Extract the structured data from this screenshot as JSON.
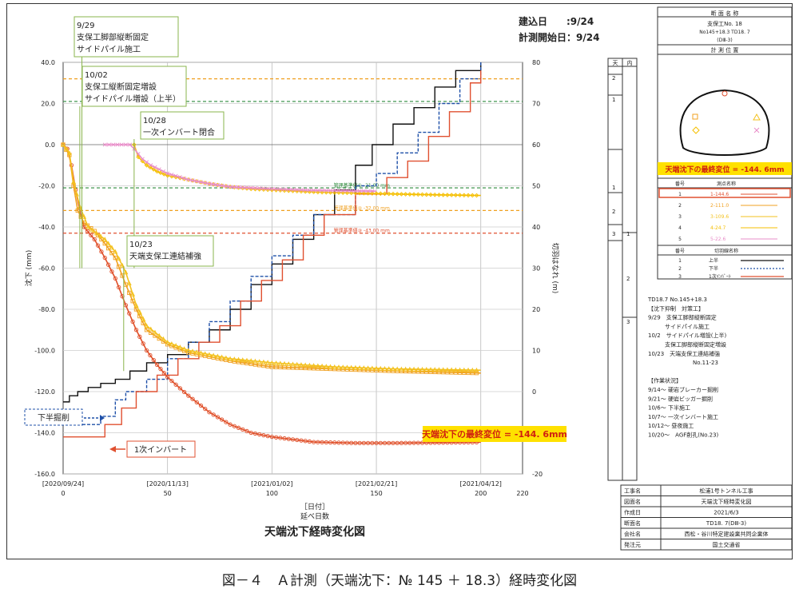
{
  "chart_data": {
    "type": "line",
    "title": "天端沈下経時変化図",
    "xlabel_top": "［日付］",
    "xlabel": "延べ日数",
    "ylabel": "沈下 (mm)",
    "y2label": "切羽はなれ (m)",
    "xlim": [
      0,
      220
    ],
    "ylim": [
      -160,
      40
    ],
    "y2lim": [
      -20,
      80
    ],
    "x_ticks": [
      0,
      50,
      100,
      150,
      200,
      220
    ],
    "y_ticks": [
      40,
      20,
      0,
      -20,
      -40,
      -60,
      -80,
      -100,
      -120,
      -140,
      -160
    ],
    "y_tick_labels": [
      "40.0",
      "20.0",
      "0.0",
      "-20.0",
      "-40.0",
      "-60.0",
      "-80.0",
      "-100.0",
      "-120.0",
      "-140.0",
      "-160.0"
    ],
    "y2_ticks": [
      80,
      70,
      60,
      50,
      40,
      30,
      20,
      10,
      0,
      -10,
      -20
    ],
    "date_ticks": [
      {
        "x": 0,
        "label": "[2020/09/24]"
      },
      {
        "x": 50,
        "label": "[2020/11/13]"
      },
      {
        "x": 100,
        "label": "[2021/01/02]"
      },
      {
        "x": 150,
        "label": "[2021/02/21]"
      },
      {
        "x": 200,
        "label": "[2021/04/12]"
      }
    ],
    "grid": true,
    "ref_lines": [
      {
        "y": 32,
        "color": "#f0a020",
        "dash": true
      },
      {
        "y": 21,
        "color": "#2e8b3c",
        "dash": true
      },
      {
        "y": -21,
        "color": "#2e8b3c",
        "dash": true,
        "label": "管理基準値① -21.00 mm"
      },
      {
        "y": -32,
        "color": "#f0a020",
        "dash": true,
        "label": "管理基準値② -32.00 mm"
      },
      {
        "y": -43,
        "color": "#e05030",
        "dash": true,
        "label": "管理基準値③ -43.00 mm"
      }
    ],
    "measure_series": [
      {
        "color": "#e0502a",
        "marker": "circle",
        "points": [
          [
            0,
            0
          ],
          [
            2,
            -2
          ],
          [
            4,
            -10
          ],
          [
            6,
            -22
          ],
          [
            8,
            -32
          ],
          [
            10,
            -40
          ],
          [
            15,
            -46
          ],
          [
            20,
            -55
          ],
          [
            25,
            -65
          ],
          [
            30,
            -78
          ],
          [
            35,
            -90
          ],
          [
            40,
            -100
          ],
          [
            45,
            -107
          ],
          [
            50,
            -113
          ],
          [
            60,
            -122
          ],
          [
            70,
            -130
          ],
          [
            80,
            -136
          ],
          [
            90,
            -140
          ],
          [
            100,
            -142
          ],
          [
            120,
            -144.5
          ],
          [
            140,
            -145
          ],
          [
            160,
            -145
          ],
          [
            180,
            -144.8
          ],
          [
            200,
            -144.6
          ]
        ]
      },
      {
        "color": "#f0a020",
        "marker": "square",
        "points": [
          [
            0,
            0
          ],
          [
            3,
            -5
          ],
          [
            5,
            -20
          ],
          [
            7,
            -32
          ],
          [
            10,
            -38
          ],
          [
            15,
            -42
          ],
          [
            20,
            -48
          ],
          [
            25,
            -55
          ],
          [
            30,
            -68
          ],
          [
            35,
            -80
          ],
          [
            40,
            -90
          ],
          [
            50,
            -97
          ],
          [
            60,
            -101
          ],
          [
            80,
            -105
          ],
          [
            100,
            -108
          ],
          [
            130,
            -109
          ],
          [
            160,
            -110
          ],
          [
            180,
            -110.5
          ],
          [
            200,
            -111
          ]
        ]
      },
      {
        "color": "#f3c21f",
        "marker": "triangle",
        "points": [
          [
            0,
            0
          ],
          [
            3,
            -4
          ],
          [
            5,
            -18
          ],
          [
            8,
            -30
          ],
          [
            12,
            -40
          ],
          [
            20,
            -46
          ],
          [
            25,
            -52
          ],
          [
            30,
            -62
          ],
          [
            35,
            -78
          ],
          [
            40,
            -88
          ],
          [
            50,
            -96
          ],
          [
            60,
            -100
          ],
          [
            80,
            -104
          ],
          [
            100,
            -106
          ],
          [
            130,
            -108
          ],
          [
            160,
            -109
          ],
          [
            200,
            -109.6
          ]
        ]
      },
      {
        "color": "#f5bf00",
        "marker": "diamond",
        "points": [
          [
            34,
            0
          ],
          [
            36,
            -6
          ],
          [
            40,
            -10
          ],
          [
            45,
            -13
          ],
          [
            50,
            -15
          ],
          [
            60,
            -17
          ],
          [
            70,
            -19
          ],
          [
            80,
            -20.5
          ],
          [
            90,
            -21.5
          ],
          [
            100,
            -22
          ],
          [
            120,
            -23
          ],
          [
            140,
            -23.5
          ],
          [
            160,
            -24
          ],
          [
            180,
            -24.4
          ],
          [
            200,
            -24.7
          ]
        ]
      },
      {
        "color": "#e88cc8",
        "marker": "x",
        "points": [
          [
            20,
            0
          ],
          [
            32,
            0
          ],
          [
            34,
            -2
          ],
          [
            38,
            -7
          ],
          [
            42,
            -10
          ],
          [
            50,
            -14
          ],
          [
            60,
            -17
          ],
          [
            70,
            -19
          ],
          [
            80,
            -20.5
          ],
          [
            100,
            -21.5
          ],
          [
            120,
            -22.2
          ],
          [
            140,
            -22.5
          ],
          [
            150,
            -22.6
          ]
        ]
      }
    ],
    "distance_series": [
      {
        "name": "上半",
        "color": "#111",
        "dash": "",
        "points": [
          [
            0,
            -2.5
          ],
          [
            3,
            -1
          ],
          [
            7,
            0
          ],
          [
            12,
            1
          ],
          [
            18,
            2
          ],
          [
            25,
            3
          ],
          [
            32,
            5
          ],
          [
            40,
            7
          ],
          [
            50,
            9
          ],
          [
            60,
            12
          ],
          [
            70,
            15
          ],
          [
            80,
            20
          ],
          [
            90,
            26
          ],
          [
            100,
            31
          ],
          [
            110,
            37
          ],
          [
            120,
            43
          ],
          [
            130,
            49
          ],
          [
            140,
            55
          ],
          [
            148,
            60
          ],
          [
            158,
            65
          ],
          [
            168,
            69
          ],
          [
            178,
            74
          ],
          [
            188,
            78
          ],
          [
            200,
            80
          ]
        ]
      },
      {
        "name": "下半",
        "color": "#1f50a8",
        "dash": "4,2",
        "points": [
          [
            0,
            -8
          ],
          [
            14,
            -8
          ],
          [
            18,
            -6
          ],
          [
            25,
            -2
          ],
          [
            30,
            0
          ],
          [
            40,
            3
          ],
          [
            50,
            8
          ],
          [
            60,
            12
          ],
          [
            70,
            17
          ],
          [
            80,
            22
          ],
          [
            90,
            28
          ],
          [
            100,
            33
          ],
          [
            110,
            38
          ],
          [
            120,
            43
          ],
          [
            140,
            50
          ],
          [
            150,
            53
          ],
          [
            160,
            58
          ],
          [
            170,
            63
          ],
          [
            180,
            70
          ],
          [
            190,
            76
          ],
          [
            200,
            80
          ]
        ]
      },
      {
        "name": "1次インバート",
        "color": "#e05030",
        "dash": "",
        "points": [
          [
            0,
            -11
          ],
          [
            14,
            -11
          ],
          [
            20,
            -8
          ],
          [
            28,
            -4
          ],
          [
            35,
            0
          ],
          [
            45,
            4
          ],
          [
            55,
            8
          ],
          [
            65,
            12
          ],
          [
            75,
            16
          ],
          [
            85,
            22
          ],
          [
            95,
            27
          ],
          [
            105,
            32
          ],
          [
            115,
            38
          ],
          [
            125,
            43
          ],
          [
            140,
            48
          ],
          [
            155,
            52
          ],
          [
            165,
            56
          ],
          [
            175,
            62
          ],
          [
            185,
            68
          ],
          [
            195,
            75
          ],
          [
            200,
            78
          ]
        ]
      }
    ],
    "annotations": [
      {
        "lines": [
          "9/29",
          "支保工脚部縦断固定",
          "サイドパイル施工"
        ],
        "anchor_x": 9
      },
      {
        "lines": [
          "10/02",
          "支保工縦断固定増設",
          "サイドパイル増設（上半）"
        ],
        "anchor_x": 8
      },
      {
        "lines": [
          "10/28",
          "一次インバート閉合"
        ],
        "anchor_x": 34
      },
      {
        "lines": [
          "10/23",
          "天端支保工連結補強"
        ],
        "anchor_x": 29
      }
    ],
    "dates": {
      "built": "建込日　　:9/24",
      "start": "計測開始日：9/24"
    },
    "final_disp": "天端沈下の最終変位 = -144. 6mm",
    "callouts": {
      "lower": "下半掘削",
      "invert": "1次インバート"
    }
  },
  "side_panel": {
    "col_headers": [
      "天",
      "内"
    ],
    "section": {
      "header": "断 面 名 称",
      "name": "支保工No. 18",
      "station": "No145+18.3 TD18. 7",
      "pattern": "(DⅢ-3)"
    },
    "position_header": "計 測 位 置",
    "final_disp": "天端沈下の最終変位 = -144. 6mm",
    "points_header": [
      "番号",
      "測点名称"
    ],
    "points": [
      {
        "no": "1",
        "label": "1-144.6"
      },
      {
        "no": "2",
        "label": "2-111.0"
      },
      {
        "no": "3",
        "label": "3-109.6"
      },
      {
        "no": "4",
        "label": "4-24.7"
      },
      {
        "no": "5",
        "label": "5-22.6"
      }
    ],
    "line_header": [
      "番号",
      "切羽線名称"
    ],
    "lines": [
      {
        "no": "1",
        "label": "上半"
      },
      {
        "no": "2",
        "label": "下半"
      },
      {
        "no": "3",
        "label": "1次ｲﾝﾊﾞｰﾄ"
      }
    ],
    "notes": [
      "TD18.7 No.145+18.3",
      "【沈下抑制　対策工】",
      "9/29　支保工脚部縦断固定",
      "　　　サイドパイル施工",
      "10/2　サイドパイル増設(上半)",
      "　　　支保工脚部縦断固定増設",
      "10/23　天端支保工連結補強",
      "　　　　　　　　No.11-23",
      "",
      "【作業状況】",
      "9/14～ 硬岩ブレーカー掘削",
      "9/21～ 硬岩ビッガー掘削",
      "10/6～ 下半施工",
      "10/7～ 一次インバート施工",
      "10/12～ 昼夜施工",
      "10/20～　AGF削孔(No.23)"
    ],
    "info": [
      {
        "k": "工事名",
        "v": "松浦1号トンネル工事"
      },
      {
        "k": "図面名",
        "v": "天端沈下経時変化図"
      },
      {
        "k": "作成日",
        "v": "2021/6/3"
      },
      {
        "k": "断面名",
        "v": "TD18. 7(DⅢ-3)"
      },
      {
        "k": "会社名",
        "v": "西松・谷川特定建設業共同企業体"
      },
      {
        "k": "発注元",
        "v": "国土交通省"
      }
    ],
    "strip_labels_a": [
      "2",
      "1",
      "1",
      "2",
      "3"
    ],
    "strip_labels_b": [
      "1",
      "2",
      "3"
    ]
  },
  "caption": "図－４　Ａ計測（天端沈下：№ 145 ＋ 18.3）経時変化図"
}
